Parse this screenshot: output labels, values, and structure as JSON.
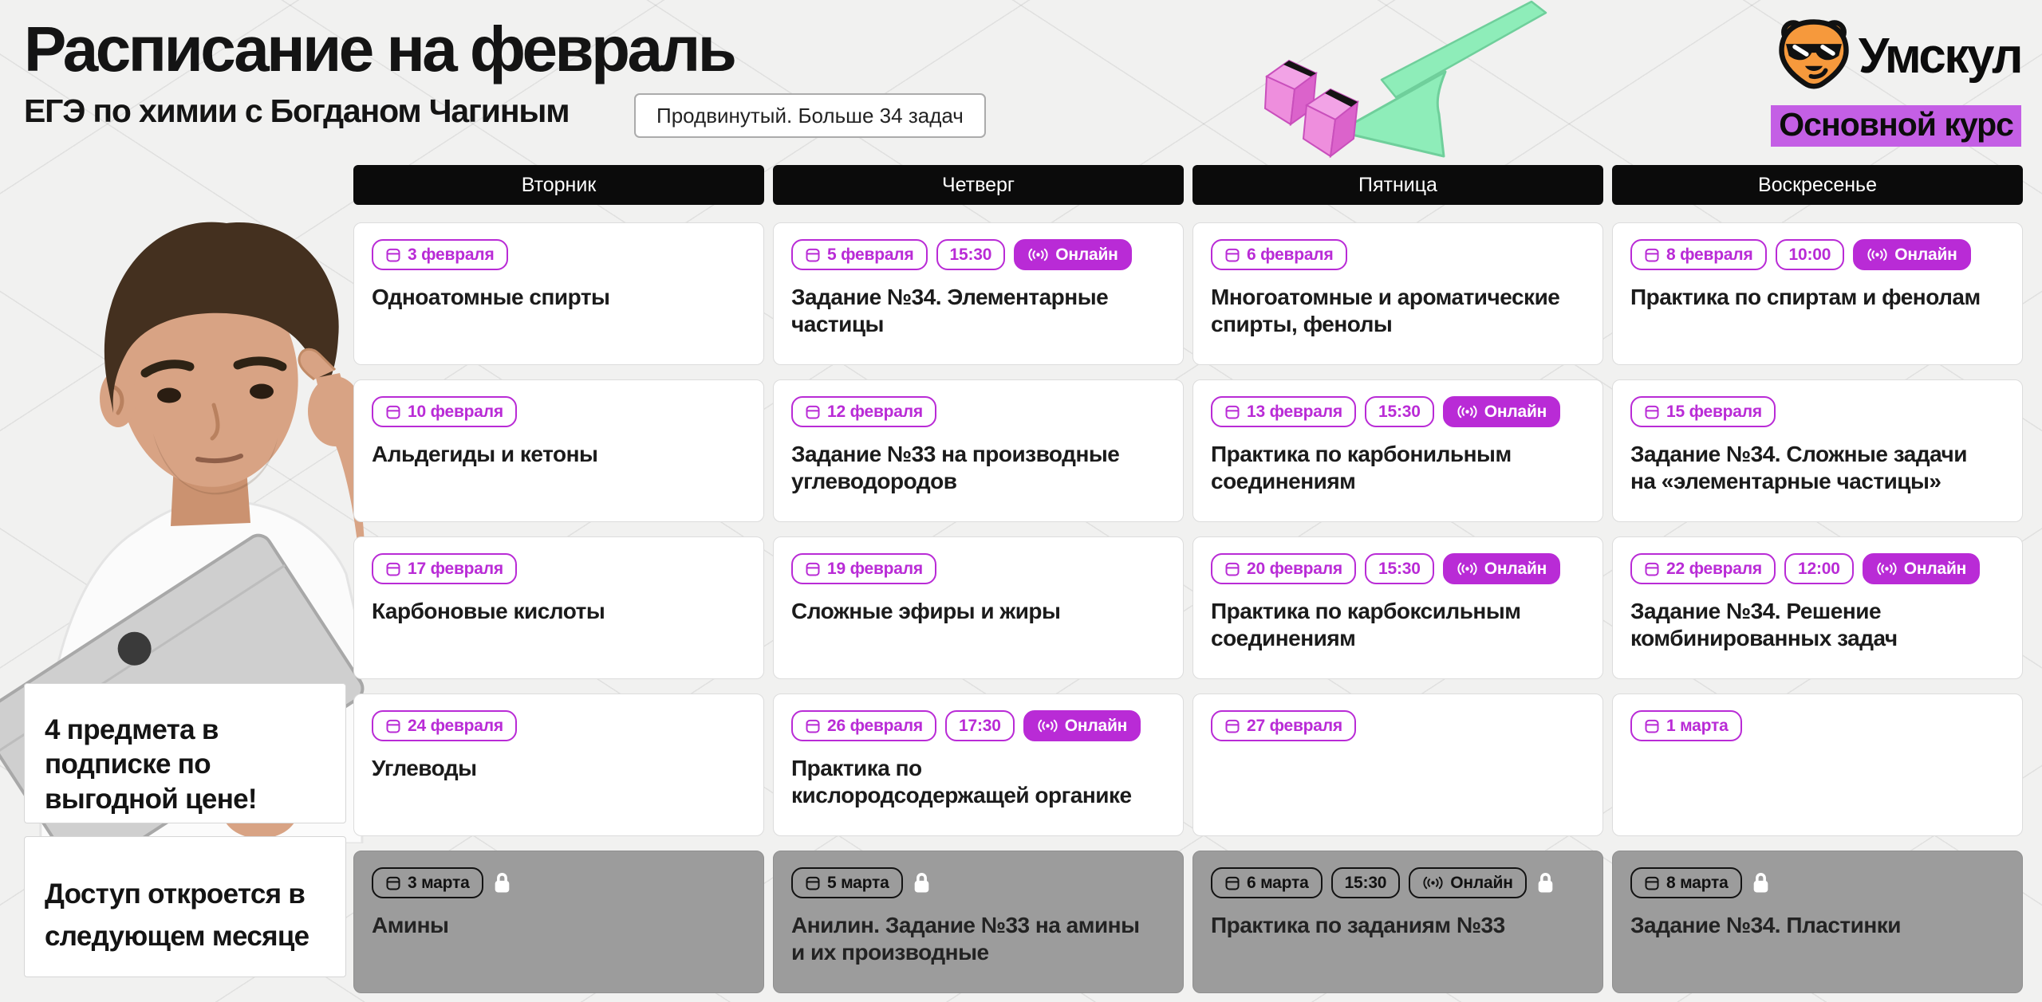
{
  "page": {
    "title": "Расписание на февраль",
    "subtitle": "ЕГЭ по химии с Богданом Чагиным",
    "level_badge": "Продвинутый. Больше 34 задач",
    "brand": "Умскул",
    "course_tag": "Основной курс"
  },
  "promo_cards": [
    {
      "text": "4 предмета в подписке по выгодной цене!"
    },
    {
      "text": "Доступ откроется в следующем месяце"
    }
  ],
  "schedule": {
    "columns": [
      {
        "day": "Вторник",
        "cards": [
          {
            "date": "3 февраля",
            "title": "Одноатомные спирты"
          },
          {
            "date": "10 февраля",
            "title": "Альдегиды и кетоны"
          },
          {
            "date": "17 февраля",
            "title": "Карбоновые кислоты"
          },
          {
            "date": "24 февраля",
            "title": "Углеводы"
          },
          {
            "date": "3 марта",
            "title": "Амины",
            "locked": true
          }
        ]
      },
      {
        "day": "Четверг",
        "cards": [
          {
            "date": "5 февраля",
            "time": "15:30",
            "online": "Онлайн",
            "title": "Задание №34. Элементарные частицы"
          },
          {
            "date": "12 февраля",
            "title": "Задание №33 на производные углеводородов"
          },
          {
            "date": "19 февраля",
            "title": "Сложные эфиры и жиры"
          },
          {
            "date": "26 февраля",
            "time": "17:30",
            "online": "Онлайн",
            "title": "Практика по кислородсодержащей органике"
          },
          {
            "date": "5 марта",
            "title": "Анилин. Задание №33 на амины и их производные",
            "locked": true
          }
        ]
      },
      {
        "day": "Пятница",
        "cards": [
          {
            "date": "6 февраля",
            "title": "Многоатомные и ароматические спирты, фенолы"
          },
          {
            "date": "13 февраля",
            "time": "15:30",
            "online": "Онлайн",
            "title": "Практика по карбонильным соединениям"
          },
          {
            "date": "20 февраля",
            "time": "15:30",
            "online": "Онлайн",
            "title": "Практика по карбоксильным соединениям"
          },
          {
            "date": "27 февраля",
            "title": ""
          },
          {
            "date": "6 марта",
            "time": "15:30",
            "online": "Онлайн",
            "title": "Практика по заданиям №33",
            "locked": true
          }
        ]
      },
      {
        "day": "Воскресенье",
        "cards": [
          {
            "date": "8 февраля",
            "time": "10:00",
            "online": "Онлайн",
            "title": "Практика по спиртам и фенолам"
          },
          {
            "date": "15 февраля",
            "title": "Задание №34. Сложные задачи на «элементарные частицы»"
          },
          {
            "date": "22 февраля",
            "time": "12:00",
            "online": "Онлайн",
            "title": "Задание №34. Решение комбинированных задач"
          },
          {
            "date": "1 марта",
            "title": ""
          },
          {
            "date": "8 марта",
            "title": "Задание №34. Пластинки",
            "locked": true
          }
        ]
      }
    ]
  },
  "icons": {
    "date": "calendar-icon",
    "online": "broadcast-icon",
    "locked": "lock-icon",
    "brand": "bear-logo-icon",
    "decoration": "arrow-and-blocks-illustration"
  },
  "colors": {
    "accent": "#B92BD6",
    "highlight": "#C45FE5",
    "header_bg": "#0B0B0B",
    "locked_bg": "#9C9C9C",
    "page_bg": "#F1F1F0",
    "arrow_green": "#8EEDB9",
    "block_pink": "#EC83DD"
  }
}
